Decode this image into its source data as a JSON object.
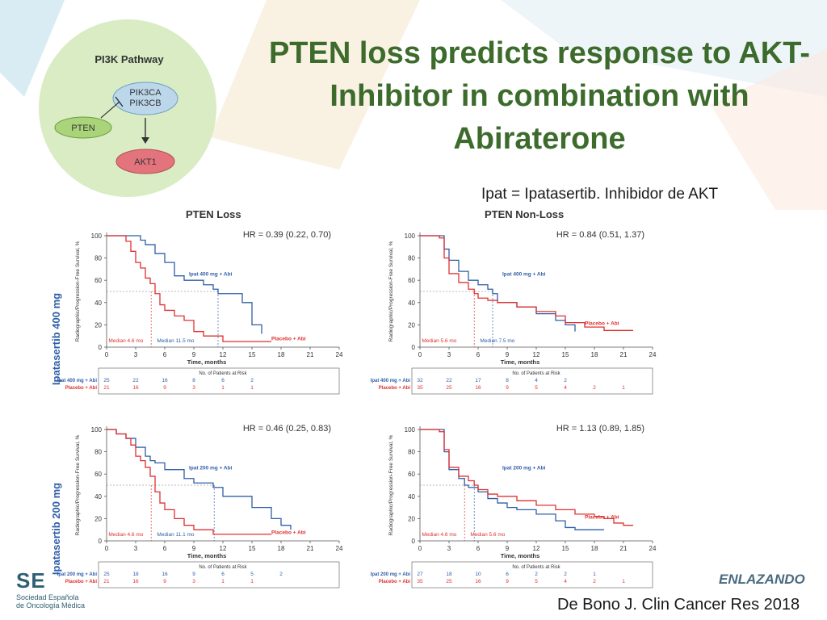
{
  "slide": {
    "title_lines": [
      "PTEN loss predicts response to AKT-",
      "Inhibitor in combination with",
      "Abiraterone"
    ],
    "subtitle": "Ipat = Ipatasertib. Inhibidor de AKT",
    "citation": "De Bono J. Clin Cancer Res 2018",
    "logo_left_big": "SE",
    "logo_left_small_1": "Sociedad Española",
    "logo_left_small_2": "de Oncología Médica",
    "logo_right": "ENLAZANDO",
    "colors": {
      "title": "#3c6b2c",
      "ipat_series": "#2f5fa8",
      "placebo_series": "#e03030",
      "pathway_circle": "#d9ecc4"
    }
  },
  "pathway": {
    "title": "PI3K Pathway",
    "node_pik3": [
      "PIK3CA",
      "PIK3CB"
    ],
    "node_pten": "PTEN",
    "node_akt": "AKT1"
  },
  "row_labels": [
    "Ipatasertib 400 mg",
    "Ipatasertib 200 mg"
  ],
  "column_labels": [
    "PTEN Loss",
    "PTEN Non-Loss"
  ],
  "chart_data": [
    {
      "type": "line",
      "column": "PTEN Loss",
      "row": "Ipatasertib 400 mg",
      "hr": "HR = 0.39 (0.22, 0.70)",
      "xlabel": "Time, months",
      "ylabel": "Radiographic/Progression-Free Survival, %",
      "xticks": [
        0,
        3,
        6,
        9,
        12,
        15,
        18,
        21,
        24
      ],
      "yticks": [
        0,
        20,
        40,
        60,
        80,
        100
      ],
      "xlim": [
        0,
        24
      ],
      "ylim": [
        0,
        100
      ],
      "series": [
        {
          "name": "Ipat 400 mg + Abi",
          "color": "ipat",
          "x": [
            0,
            2.5,
            3.5,
            4,
            5,
            6,
            7,
            8,
            10,
            11,
            11.5,
            13,
            14,
            15,
            16
          ],
          "y": [
            100,
            100,
            96,
            92,
            84,
            76,
            64,
            60,
            56,
            52,
            48,
            48,
            40,
            20,
            12
          ]
        },
        {
          "name": "Placebo + Abi",
          "color": "placebo",
          "x": [
            0,
            2,
            2.5,
            3,
            3.5,
            4,
            4.5,
            5,
            5.5,
            6,
            7,
            8,
            9,
            10,
            12,
            16,
            17
          ],
          "y": [
            100,
            95,
            86,
            76,
            71,
            62,
            57,
            48,
            38,
            33,
            28,
            24,
            14,
            10,
            5,
            5,
            5
          ]
        }
      ],
      "annotations": [
        "Median 4.6 mo",
        "Median 11.5 mo"
      ],
      "medians": [
        4.6,
        11.5
      ],
      "risk_table": {
        "title": "No. of Patients at Risk",
        "rows": [
          {
            "label": "Ipat 400 mg + Abi",
            "values": [
              "25",
              "22",
              "16",
              "8",
              "6",
              "2"
            ]
          },
          {
            "label": "Placebo + Abi",
            "values": [
              "21",
              "16",
              "9",
              "3",
              "1",
              "1"
            ]
          }
        ]
      }
    },
    {
      "type": "line",
      "column": "PTEN Non-Loss",
      "row": "Ipatasertib 400 mg",
      "hr": "HR = 0.84 (0.51, 1.37)",
      "xlabel": "Time, months",
      "ylabel": "Radiographic/Progression-Free Survival, %",
      "xticks": [
        0,
        3,
        6,
        9,
        12,
        15,
        18,
        21,
        24
      ],
      "yticks": [
        0,
        20,
        40,
        60,
        80,
        100
      ],
      "xlim": [
        0,
        24
      ],
      "ylim": [
        0,
        100
      ],
      "series": [
        {
          "name": "Ipat 400 mg + Abi",
          "color": "ipat",
          "x": [
            0,
            2,
            2.5,
            3,
            4,
            5,
            6,
            7,
            7.5,
            8,
            10,
            12,
            14,
            15,
            16
          ],
          "y": [
            100,
            100,
            88,
            78,
            68,
            60,
            56,
            52,
            48,
            40,
            36,
            30,
            24,
            20,
            14
          ]
        },
        {
          "name": "Placebo + Abi",
          "color": "placebo",
          "x": [
            0,
            2,
            2.5,
            3,
            4,
            5,
            5.6,
            6,
            7,
            8,
            10,
            12,
            14,
            15,
            17,
            19,
            21,
            22
          ],
          "y": [
            100,
            98,
            80,
            66,
            58,
            52,
            48,
            44,
            42,
            40,
            36,
            32,
            28,
            22,
            18,
            15,
            15,
            15
          ]
        }
      ],
      "annotations": [
        "Median 5.6 mo",
        "Median 7.5 mo"
      ],
      "medians": [
        5.6,
        7.5
      ],
      "risk_table": {
        "title": "No. of Patients at Risk",
        "rows": [
          {
            "label": "Ipat 400 mg + Abi",
            "values": [
              "32",
              "22",
              "17",
              "8",
              "4",
              "2"
            ]
          },
          {
            "label": "Placebo + Abi",
            "values": [
              "35",
              "25",
              "16",
              "9",
              "5",
              "4",
              "2",
              "1"
            ]
          }
        ]
      }
    },
    {
      "type": "line",
      "column": "PTEN Loss",
      "row": "Ipatasertib 200 mg",
      "hr": "HR = 0.46 (0.25, 0.83)",
      "xlabel": "Time, months",
      "ylabel": "Radiographic/Progression-Free Survival, %",
      "xticks": [
        0,
        3,
        6,
        9,
        12,
        15,
        18,
        21,
        24
      ],
      "yticks": [
        0,
        20,
        40,
        60,
        80,
        100
      ],
      "xlim": [
        0,
        24
      ],
      "ylim": [
        0,
        100
      ],
      "series": [
        {
          "name": "Ipat 200 mg + Abi",
          "color": "ipat",
          "x": [
            0,
            1,
            2,
            3,
            4,
            4.5,
            5,
            6,
            8,
            9,
            11,
            12,
            15,
            17,
            18,
            19
          ],
          "y": [
            100,
            96,
            92,
            84,
            76,
            72,
            70,
            64,
            56,
            52,
            48,
            40,
            30,
            20,
            14,
            10
          ]
        },
        {
          "name": "Placebo + Abi",
          "color": "placebo",
          "x": [
            0,
            1,
            2,
            2.5,
            3,
            3.5,
            4,
            4.5,
            5,
            5.5,
            6,
            7,
            8,
            9,
            11,
            12,
            15,
            17
          ],
          "y": [
            100,
            96,
            92,
            86,
            76,
            72,
            66,
            58,
            44,
            34,
            28,
            20,
            14,
            10,
            6,
            6,
            6,
            6
          ]
        }
      ],
      "annotations": [
        "Median 4.6 mo",
        "Median 11.1 mo"
      ],
      "medians": [
        4.6,
        11.1
      ],
      "risk_table": {
        "title": "No. of Patients at Risk",
        "rows": [
          {
            "label": "Ipat 200 mg + Abi",
            "values": [
              "25",
              "18",
              "16",
              "9",
              "6",
              "5",
              "2"
            ]
          },
          {
            "label": "Placebo + Abi",
            "values": [
              "21",
              "16",
              "9",
              "3",
              "1",
              "1"
            ]
          }
        ]
      }
    },
    {
      "type": "line",
      "column": "PTEN Non-Loss",
      "row": "Ipatasertib 200 mg",
      "hr": "HR = 1.13 (0.89, 1.85)",
      "xlabel": "Time, months",
      "ylabel": "Radiographic/Progression-Free Survival, %",
      "xticks": [
        0,
        3,
        6,
        9,
        12,
        15,
        18,
        21,
        24
      ],
      "yticks": [
        0,
        20,
        40,
        60,
        80,
        100
      ],
      "xlim": [
        0,
        24
      ],
      "ylim": [
        0,
        100
      ],
      "series": [
        {
          "name": "Ipat 200 mg + Abi",
          "color": "ipat",
          "x": [
            0,
            2,
            2.5,
            3,
            4,
            4.6,
            5,
            6,
            7,
            8,
            9,
            10,
            12,
            14,
            15,
            16,
            17,
            19
          ],
          "y": [
            100,
            100,
            80,
            64,
            56,
            50,
            48,
            44,
            38,
            34,
            30,
            28,
            24,
            18,
            12,
            10,
            10,
            10
          ]
        },
        {
          "name": "Placebo + Abi",
          "color": "placebo",
          "x": [
            0,
            2,
            2.5,
            3,
            4,
            5,
            5.6,
            6,
            7,
            8,
            10,
            12,
            14,
            16,
            18,
            19,
            20,
            21,
            22
          ],
          "y": [
            100,
            98,
            82,
            66,
            58,
            54,
            50,
            46,
            42,
            40,
            36,
            32,
            28,
            24,
            22,
            20,
            16,
            14,
            14
          ]
        }
      ],
      "annotations": [
        "Median 4.6 mo",
        "Median 5.6 mo"
      ],
      "medians": [
        4.6,
        5.6
      ],
      "risk_table": {
        "title": "No. of Patients at Risk",
        "rows": [
          {
            "label": "Ipat 200 mg + Abi",
            "values": [
              "27",
              "18",
              "10",
              "6",
              "2",
              "2",
              "1"
            ]
          },
          {
            "label": "Placebo + Abi",
            "values": [
              "35",
              "25",
              "16",
              "9",
              "5",
              "4",
              "2",
              "1"
            ]
          }
        ]
      }
    }
  ]
}
